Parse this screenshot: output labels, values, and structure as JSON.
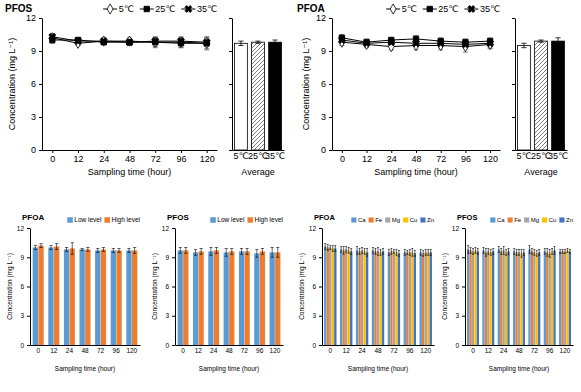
{
  "chart_data": [
    {
      "type": "line",
      "title": "PFOS",
      "categories": [
        "0",
        "12",
        "24",
        "48",
        "72",
        "96",
        "120"
      ],
      "xlabel": "Sampling time (hour)",
      "ylabel": "Concentration (mg L⁻¹)",
      "ylim": [
        0,
        12
      ],
      "yticks": [
        0,
        3,
        6,
        9,
        12
      ],
      "legend": "top-right",
      "series": [
        {
          "name": "5℃",
          "color": "#000000",
          "marker": "diamond-open",
          "values": [
            10.2,
            9.7,
            9.9,
            9.9,
            9.8,
            9.8,
            9.7
          ],
          "errors": [
            0.3,
            0.2,
            0.3,
            0.3,
            0.5,
            0.5,
            0.6
          ]
        },
        {
          "name": "25℃",
          "color": "#000000",
          "marker": "square",
          "values": [
            10.0,
            10.0,
            9.8,
            9.8,
            9.8,
            9.7,
            9.7
          ],
          "errors": [
            0.3,
            0.2,
            0.2,
            0.3,
            0.4,
            0.4,
            0.5
          ]
        },
        {
          "name": "35℃",
          "color": "#000000",
          "marker": "x",
          "values": [
            10.3,
            9.9,
            9.9,
            9.8,
            9.9,
            9.9,
            9.8
          ],
          "errors": [
            0.2,
            0.3,
            0.2,
            0.2,
            0.3,
            0.3,
            0.4
          ]
        }
      ]
    },
    {
      "type": "bar",
      "categories": [
        "5℃",
        "25℃",
        "35℃"
      ],
      "xlabel": "Average",
      "ylim": [
        0,
        12
      ],
      "yticks": [
        0,
        3,
        6,
        9,
        12
      ],
      "tick_labels": "x",
      "values": [
        9.7,
        9.8,
        9.8
      ],
      "errors": [
        0.2,
        0.1,
        0.2
      ],
      "colors": [
        "#ffffff",
        "#808080",
        "#000000"
      ]
    },
    {
      "type": "line",
      "title": "PFOA",
      "categories": [
        "0",
        "12",
        "24",
        "48",
        "72",
        "96",
        "120"
      ],
      "xlabel": "Sampling time (hour)",
      "ylabel": "Concentration (mg L⁻¹)",
      "ylim": [
        0,
        12
      ],
      "yticks": [
        0,
        3,
        6,
        9,
        12
      ],
      "legend": "top-right",
      "series": [
        {
          "name": "5℃",
          "color": "#000000",
          "marker": "diamond-open",
          "values": [
            9.8,
            9.6,
            9.4,
            9.5,
            9.5,
            9.4,
            9.6
          ],
          "errors": [
            0.3,
            0.3,
            0.3,
            0.4,
            0.4,
            0.5,
            0.4
          ]
        },
        {
          "name": "25℃",
          "color": "#000000",
          "marker": "square",
          "values": [
            10.2,
            9.8,
            10.0,
            10.1,
            9.9,
            9.8,
            9.9
          ],
          "errors": [
            0.3,
            0.3,
            0.2,
            0.3,
            0.3,
            0.3,
            0.3
          ]
        },
        {
          "name": "35℃",
          "color": "#000000",
          "marker": "x",
          "values": [
            10.0,
            9.7,
            9.8,
            9.7,
            9.7,
            9.6,
            9.7
          ],
          "errors": [
            0.3,
            0.2,
            0.3,
            0.3,
            0.4,
            0.4,
            0.4
          ]
        }
      ]
    },
    {
      "type": "bar",
      "categories": [
        "5℃",
        "25℃",
        "35℃"
      ],
      "xlabel": "Average",
      "ylim": [
        0,
        12
      ],
      "yticks": [
        0,
        3,
        6,
        9,
        12
      ],
      "tick_labels": "x",
      "values": [
        9.5,
        9.9,
        9.9
      ],
      "errors": [
        0.2,
        0.1,
        0.3
      ],
      "colors": [
        "#ffffff",
        "#808080",
        "#000000"
      ]
    },
    {
      "type": "bar",
      "title": "PFOA",
      "categories": [
        "0",
        "12",
        "24",
        "48",
        "72",
        "96",
        "120"
      ],
      "xlabel": "Sampling time (hour)",
      "ylabel": "Concentration (mg L⁻¹)",
      "ylim": [
        0,
        12
      ],
      "yticks": [
        0,
        3,
        6,
        9,
        12
      ],
      "legend": "top-right",
      "series": [
        {
          "name": "Low level",
          "color": "#5b9bd5",
          "values": [
            10.0,
            10.0,
            9.8,
            9.8,
            9.7,
            9.7,
            9.7
          ],
          "errors": [
            0.2,
            0.2,
            0.2,
            0.1,
            0.2,
            0.2,
            0.2
          ]
        },
        {
          "name": "High level",
          "color": "#ed7d31",
          "values": [
            10.2,
            10.1,
            9.9,
            9.8,
            9.8,
            9.7,
            9.7
          ],
          "errors": [
            0.2,
            0.3,
            0.6,
            0.2,
            0.2,
            0.2,
            0.3
          ]
        }
      ]
    },
    {
      "type": "bar",
      "title": "PFOS",
      "categories": [
        "0",
        "12",
        "24",
        "48",
        "72",
        "96",
        "120"
      ],
      "xlabel": "Sampling time (hour)",
      "ylabel": "Concentration (mg L⁻¹)",
      "ylim": [
        0,
        12
      ],
      "yticks": [
        0,
        3,
        6,
        9,
        12
      ],
      "legend": "top-right",
      "series": [
        {
          "name": "Low level",
          "color": "#5b9bd5",
          "values": [
            9.7,
            9.5,
            9.6,
            9.5,
            9.6,
            9.4,
            9.5
          ],
          "errors": [
            0.3,
            0.3,
            0.4,
            0.4,
            0.3,
            0.4,
            0.5
          ]
        },
        {
          "name": "High level",
          "color": "#ed7d31",
          "values": [
            9.7,
            9.6,
            9.7,
            9.6,
            9.6,
            9.6,
            9.5
          ],
          "errors": [
            0.3,
            0.3,
            0.3,
            0.3,
            0.3,
            0.3,
            0.5
          ]
        }
      ]
    },
    {
      "type": "bar",
      "title": "PFOA",
      "categories": [
        "0",
        "12",
        "24",
        "48",
        "72",
        "96",
        "120"
      ],
      "xlabel": "Sampling time (hour)",
      "ylabel": "Concentration (mg L⁻¹)",
      "ylim": [
        0,
        12
      ],
      "yticks": [
        0,
        3,
        6,
        9,
        12
      ],
      "legend": "top-right",
      "series": [
        {
          "name": "Ca",
          "color": "#5b9bd5",
          "values": [
            10.1,
            9.8,
            9.7,
            9.7,
            9.5,
            9.5,
            9.5
          ],
          "errors": [
            0.3,
            0.3,
            0.4,
            0.3,
            0.3,
            0.3,
            0.3
          ]
        },
        {
          "name": "Fe",
          "color": "#ed7d31",
          "values": [
            10.0,
            9.7,
            9.6,
            9.6,
            9.6,
            9.5,
            9.4
          ],
          "errors": [
            0.3,
            0.4,
            0.3,
            0.3,
            0.3,
            0.2,
            0.3
          ]
        },
        {
          "name": "Mg",
          "color": "#a5a5a5",
          "values": [
            10.0,
            9.8,
            9.7,
            9.6,
            9.6,
            9.5,
            9.5
          ],
          "errors": [
            0.2,
            0.3,
            0.3,
            0.4,
            0.2,
            0.3,
            0.3
          ]
        },
        {
          "name": "Cu",
          "color": "#ffc000",
          "values": [
            9.9,
            9.7,
            9.6,
            9.5,
            9.5,
            9.5,
            9.5
          ],
          "errors": [
            0.3,
            0.3,
            0.3,
            0.3,
            0.3,
            0.4,
            0.3
          ]
        },
        {
          "name": "Zn",
          "color": "#4472c4",
          "values": [
            9.9,
            9.6,
            9.5,
            9.6,
            9.4,
            9.4,
            9.5
          ],
          "errors": [
            0.3,
            0.3,
            0.4,
            0.3,
            0.3,
            0.3,
            0.3
          ]
        }
      ]
    },
    {
      "type": "bar",
      "title": "PFOS",
      "categories": [
        "0",
        "12",
        "24",
        "48",
        "72",
        "96",
        "120"
      ],
      "xlabel": "Sampling time (hour)",
      "ylabel": "Concentration (mg L⁻¹)",
      "ylim": [
        0,
        12
      ],
      "yticks": [
        0,
        3,
        6,
        9,
        12
      ],
      "legend": "top-right",
      "series": [
        {
          "name": "Ca",
          "color": "#5b9bd5",
          "values": [
            9.8,
            9.7,
            9.8,
            9.6,
            9.8,
            9.6,
            9.6
          ],
          "errors": [
            0.4,
            0.3,
            0.3,
            0.3,
            0.4,
            0.3,
            0.2
          ]
        },
        {
          "name": "Fe",
          "color": "#ed7d31",
          "values": [
            9.7,
            9.5,
            9.6,
            9.5,
            9.6,
            9.5,
            9.6
          ],
          "errors": [
            0.3,
            0.4,
            0.3,
            0.3,
            0.3,
            0.4,
            0.2
          ]
        },
        {
          "name": "Mg",
          "color": "#a5a5a5",
          "values": [
            9.6,
            9.6,
            9.7,
            9.5,
            9.5,
            9.4,
            9.6
          ],
          "errors": [
            0.3,
            0.3,
            0.4,
            0.3,
            0.3,
            0.4,
            0.2
          ]
        },
        {
          "name": "Cu",
          "color": "#ffc000",
          "values": [
            9.7,
            9.5,
            9.5,
            9.4,
            9.4,
            9.6,
            9.7
          ],
          "errors": [
            0.3,
            0.3,
            0.3,
            0.4,
            0.3,
            0.3,
            0.2
          ]
        },
        {
          "name": "Zn",
          "color": "#4472c4",
          "values": [
            9.6,
            9.6,
            9.6,
            9.5,
            9.5,
            9.7,
            9.6
          ],
          "errors": [
            0.3,
            0.3,
            0.3,
            0.3,
            0.3,
            0.4,
            0.2
          ]
        }
      ]
    }
  ]
}
